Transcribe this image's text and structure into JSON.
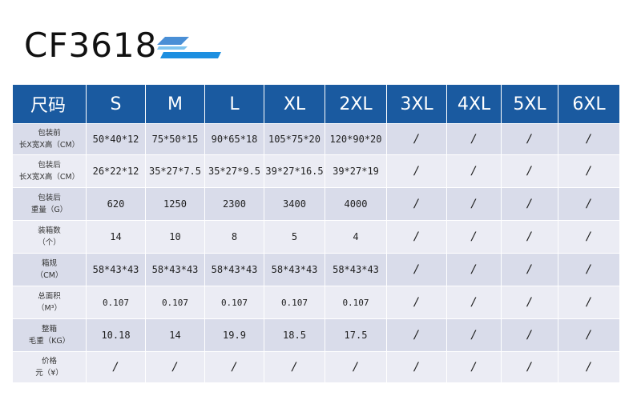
{
  "title": "CF3618",
  "accent_color": "#1a5aa0",
  "stripe_colors": [
    "#4a8fd6",
    "#7fc4ef",
    "#1d8fe0"
  ],
  "table": {
    "header_label": "尺码",
    "sizes": [
      "S",
      "M",
      "L",
      "XL",
      "2XL",
      "3XL",
      "4XL",
      "5XL",
      "6XL"
    ],
    "rows": [
      {
        "label_line1": "包装前",
        "label_line2": "长X宽X高（CM）",
        "values": [
          "50*40*12",
          "75*50*15",
          "90*65*18",
          "105*75*20",
          "120*90*20",
          "/",
          "/",
          "/",
          "/"
        ]
      },
      {
        "label_line1": "包装后",
        "label_line2": "长X宽X高（CM）",
        "values": [
          "26*22*12",
          "35*27*7.5",
          "35*27*9.5",
          "39*27*16.5",
          "39*27*19",
          "/",
          "/",
          "/",
          "/"
        ]
      },
      {
        "label_line1": "包装后",
        "label_line2": "重量（G）",
        "values": [
          "620",
          "1250",
          "2300",
          "3400",
          "4000",
          "/",
          "/",
          "/",
          "/"
        ]
      },
      {
        "label_line1": "装箱数",
        "label_line2": "（个）",
        "values": [
          "14",
          "10",
          "8",
          "5",
          "4",
          "/",
          "/",
          "/",
          "/"
        ]
      },
      {
        "label_line1": "箱规",
        "label_line2": "（CM）",
        "values": [
          "58*43*43",
          "58*43*43",
          "58*43*43",
          "58*43*43",
          "58*43*43",
          "/",
          "/",
          "/",
          "/"
        ]
      },
      {
        "label_line1": "总面积",
        "label_line2": "（M³）",
        "values": [
          "0.107",
          "0.107",
          "0.107",
          "0.107",
          "0.107",
          "/",
          "/",
          "/",
          "/"
        ]
      },
      {
        "label_line1": "整箱",
        "label_line2": "毛重（KG）",
        "values": [
          "10.18",
          "14",
          "19.9",
          "18.5",
          "17.5",
          "/",
          "/",
          "/",
          "/"
        ]
      },
      {
        "label_line1": "价格",
        "label_line2": "元（¥）",
        "values": [
          "/",
          "/",
          "/",
          "/",
          "/",
          "/",
          "/",
          "/",
          "/"
        ]
      }
    ]
  }
}
